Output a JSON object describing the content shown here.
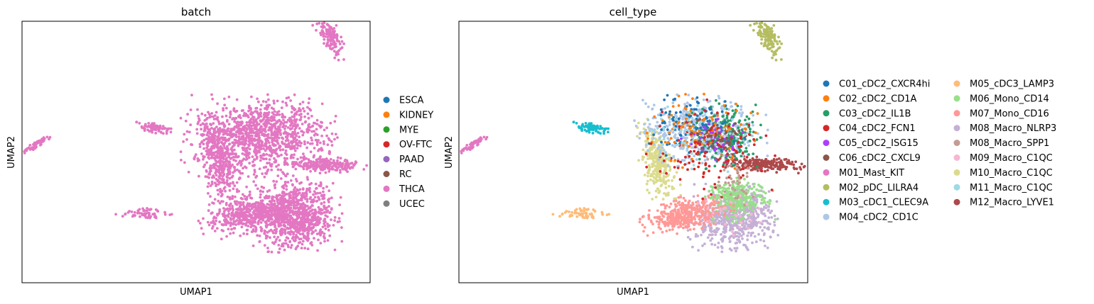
{
  "chart_data": [
    {
      "type": "scatter",
      "title": "batch",
      "xlabel": "UMAP1",
      "ylabel": "UMAP2",
      "xlim": [
        -10,
        20
      ],
      "ylim": [
        -5,
        20
      ],
      "grid": false,
      "legend_placement": "right",
      "legend": [
        {
          "label": "ESCA",
          "color": "#1f77b4"
        },
        {
          "label": "KIDNEY",
          "color": "#ff7f0e"
        },
        {
          "label": "MYE",
          "color": "#2ca02c"
        },
        {
          "label": "OV-FTC",
          "color": "#d62728"
        },
        {
          "label": "PAAD",
          "color": "#9467bd"
        },
        {
          "label": "RC",
          "color": "#8c564b"
        },
        {
          "label": "THCA",
          "color": "#e377c2"
        },
        {
          "label": "UCEC",
          "color": "#7f7f7f"
        }
      ],
      "series": [
        {
          "name": "THCA",
          "clusters": [
            {
              "cx": 16.5,
              "cy": 18.8,
              "sx": 0.4,
              "sy": 1.2,
              "n": 160,
              "rot": 25
            },
            {
              "cx": 1.5,
              "cy": 9.8,
              "sx": 0.7,
              "sy": 0.2,
              "n": 70,
              "rot": -10
            },
            {
              "cx": -8.8,
              "cy": 8.2,
              "sx": 0.6,
              "sy": 0.12,
              "n": 60,
              "rot": 35
            },
            {
              "cx": 0.5,
              "cy": 1.6,
              "sx": 1.0,
              "sy": 0.22,
              "n": 60,
              "rot": 0
            },
            {
              "cx": 7.0,
              "cy": 6.5,
              "sx": 0.7,
              "sy": 2.0,
              "n": 350,
              "rot": 15
            },
            {
              "cx": 10.5,
              "cy": 9.0,
              "sx": 2.8,
              "sy": 1.6,
              "n": 1100,
              "rot": 0
            },
            {
              "cx": 16.0,
              "cy": 6.3,
              "sx": 1.8,
              "sy": 0.3,
              "n": 250,
              "rot": -3
            },
            {
              "cx": 13.5,
              "cy": 1.5,
              "sx": 1.7,
              "sy": 1.5,
              "n": 900,
              "rot": 0
            },
            {
              "cx": 9.5,
              "cy": 1.5,
              "sx": 1.8,
              "sy": 0.8,
              "n": 450,
              "rot": 10
            }
          ]
        }
      ]
    },
    {
      "type": "scatter",
      "title": "cell_type",
      "xlabel": "UMAP1",
      "ylabel": "UMAP2",
      "xlim": [
        -10,
        20
      ],
      "ylim": [
        -5,
        20
      ],
      "grid": false,
      "legend_placement": "right",
      "legend": [
        {
          "label": "C01_cDC2_CXCR4hi",
          "color": "#1f77b4"
        },
        {
          "label": "C02_cDC2_CD1A",
          "color": "#ff7f0e"
        },
        {
          "label": "C03_cDC2_IL1B",
          "color": "#279e68"
        },
        {
          "label": "C04_cDC2_FCN1",
          "color": "#d62728"
        },
        {
          "label": "C05_cDC2_ISG15",
          "color": "#aa40fc"
        },
        {
          "label": "C06_cDC2_CXCL9",
          "color": "#8c564b"
        },
        {
          "label": "M01_Mast_KIT",
          "color": "#e377c2"
        },
        {
          "label": "M02_pDC_LILRA4",
          "color": "#b5bd61"
        },
        {
          "label": "M03_cDC1_CLEC9A",
          "color": "#17becf"
        },
        {
          "label": "M04_cDC2_CD1C",
          "color": "#aec7e8"
        },
        {
          "label": "M05_cDC3_LAMP3",
          "color": "#ffbb78"
        },
        {
          "label": "M06_Mono_CD14",
          "color": "#98df8a"
        },
        {
          "label": "M07_Mono_CD16",
          "color": "#ff9896"
        },
        {
          "label": "M08_Macro_NLRP3",
          "color": "#c5b0d5"
        },
        {
          "label": "M08_Macro_SPP1",
          "color": "#c49c94"
        },
        {
          "label": "M09_Macro_C1QC",
          "color": "#f7b6d2"
        },
        {
          "label": "M10_Macro_C1QC",
          "color": "#dbdb8d"
        },
        {
          "label": "M11_Macro_C1QC",
          "color": "#9edae5"
        },
        {
          "label": "M12_Macro_LYVE1",
          "color": "#ad494a"
        }
      ],
      "series": [
        {
          "name": "M02_pDC_LILRA4",
          "clusters": [
            {
              "cx": 16.5,
              "cy": 18.8,
              "sx": 0.4,
              "sy": 1.2,
              "n": 160,
              "rot": 25
            }
          ]
        },
        {
          "name": "M03_cDC1_CLEC9A",
          "clusters": [
            {
              "cx": 1.5,
              "cy": 9.8,
              "sx": 0.7,
              "sy": 0.2,
              "n": 70,
              "rot": -10
            }
          ]
        },
        {
          "name": "M01_Mast_KIT",
          "clusters": [
            {
              "cx": -8.8,
              "cy": 8.2,
              "sx": 0.6,
              "sy": 0.12,
              "n": 60,
              "rot": 35
            }
          ]
        },
        {
          "name": "M05_cDC3_LAMP3",
          "clusters": [
            {
              "cx": 0.5,
              "cy": 1.6,
              "sx": 1.0,
              "sy": 0.22,
              "n": 60,
              "rot": 0
            }
          ]
        },
        {
          "name": "M10_Macro_C1QC",
          "clusters": [
            {
              "cx": 7.0,
              "cy": 6.5,
              "sx": 0.6,
              "sy": 1.8,
              "n": 300,
              "rot": 15
            }
          ]
        },
        {
          "name": "M12_Macro_LYVE1",
          "clusters": [
            {
              "cx": 16.0,
              "cy": 6.3,
              "sx": 1.6,
              "sy": 0.3,
              "n": 220,
              "rot": -3
            }
          ]
        },
        {
          "name": "M08_Macro_NLRP3",
          "clusters": [
            {
              "cx": 13.6,
              "cy": 1.2,
              "sx": 1.6,
              "sy": 1.3,
              "n": 650,
              "rot": 0
            }
          ]
        },
        {
          "name": "M06_Mono_CD14",
          "clusters": [
            {
              "cx": 14.0,
              "cy": 3.0,
              "sx": 1.3,
              "sy": 0.9,
              "n": 280,
              "rot": 0
            }
          ]
        },
        {
          "name": "M07_Mono_CD16",
          "clusters": [
            {
              "cx": 9.5,
              "cy": 1.5,
              "sx": 1.7,
              "sy": 0.7,
              "n": 380,
              "rot": 10
            }
          ]
        },
        {
          "name": "M04_cDC2_CD1C",
          "clusters": [
            {
              "cx": 10.8,
              "cy": 9.5,
              "sx": 2.4,
              "sy": 1.4,
              "n": 500,
              "rot": 0
            }
          ]
        },
        {
          "name": "C03_cDC2_IL1B",
          "clusters": [
            {
              "cx": 13.0,
              "cy": 9.2,
              "sx": 1.3,
              "sy": 1.4,
              "n": 220,
              "rot": 0
            }
          ]
        },
        {
          "name": "C01_cDC2_CXCR4hi",
          "clusters": [
            {
              "cx": 10.5,
              "cy": 10.0,
              "sx": 1.8,
              "sy": 1.2,
              "n": 140,
              "rot": 0
            }
          ]
        },
        {
          "name": "C02_cDC2_CD1A",
          "clusters": [
            {
              "cx": 10.5,
              "cy": 9.5,
              "sx": 2.2,
              "sy": 1.5,
              "n": 110,
              "rot": 0
            }
          ]
        },
        {
          "name": "C05_cDC2_ISG15",
          "clusters": [
            {
              "cx": 12.0,
              "cy": 8.6,
              "sx": 1.2,
              "sy": 0.9,
              "n": 60,
              "rot": 0
            }
          ]
        },
        {
          "name": "C04_cDC2_FCN1",
          "clusters": [
            {
              "cx": 11.5,
              "cy": 7.5,
              "sx": 2.3,
              "sy": 2.0,
              "n": 120,
              "rot": 0
            }
          ]
        },
        {
          "name": "C06_cDC2_CXCL9",
          "clusters": [
            {
              "cx": 12.0,
              "cy": 9.0,
              "sx": 1.2,
              "sy": 0.8,
              "n": 40,
              "rot": 0
            }
          ]
        },
        {
          "name": "M11_Macro_C1QC",
          "clusters": [
            {
              "cx": 10.0,
              "cy": 9.0,
              "sx": 2.0,
              "sy": 1.5,
              "n": 60,
              "rot": 0
            }
          ]
        },
        {
          "name": "M08_Macro_SPP1",
          "clusters": [
            {
              "cx": 13.5,
              "cy": 4.5,
              "sx": 1.0,
              "sy": 1.0,
              "n": 40,
              "rot": 0
            }
          ]
        },
        {
          "name": "M09_Macro_C1QC",
          "clusters": [
            {
              "cx": 13.5,
              "cy": 1.5,
              "sx": 1.2,
              "sy": 1.0,
              "n": 30,
              "rot": 0
            }
          ]
        }
      ]
    }
  ]
}
